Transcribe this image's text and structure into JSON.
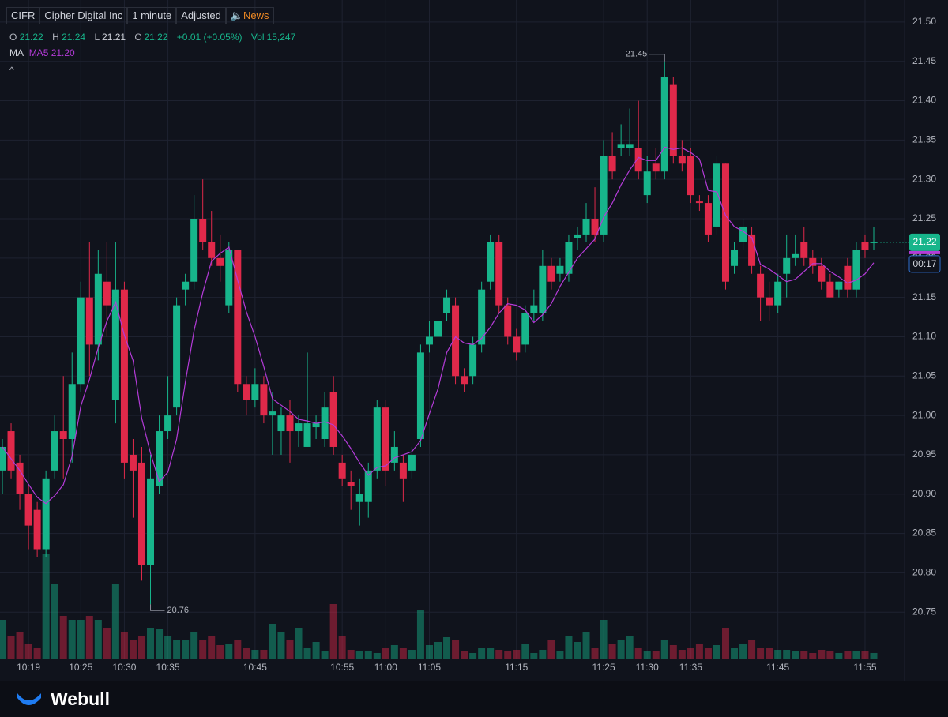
{
  "header": {
    "symbol": "CIFR",
    "name": "Cipher Digital Inc",
    "interval": "1 minute",
    "adjust": "Adjusted",
    "news": "News"
  },
  "legend": {
    "o_label": "O",
    "o": "21.22",
    "h_label": "H",
    "h": "21.24",
    "l_label": "L",
    "l": "21.21",
    "c_label": "C",
    "c": "21.22",
    "change": "+0.01 (+0.05%)",
    "vol_label": "Vol",
    "vol": "15,247",
    "ma_label": "MA",
    "ma": "MA5 21.20",
    "collapse": "^"
  },
  "countdown": "00:17",
  "brand": "Webull",
  "chart_data": {
    "type": "candlestick",
    "categories": [
      null,
      null,
      null,
      "10:19",
      null,
      null,
      null,
      null,
      null,
      "10:25",
      null,
      null,
      null,
      null,
      "10:30",
      null,
      null,
      null,
      null,
      "10:35",
      null,
      null,
      null,
      null,
      null,
      null,
      null,
      null,
      null,
      "10:45",
      null,
      null,
      null,
      null,
      null,
      null,
      null,
      null,
      null,
      "10:55",
      null,
      null,
      null,
      null,
      "11:00",
      null,
      null,
      null,
      null,
      "11:05",
      null,
      null,
      null,
      null,
      null,
      null,
      null,
      null,
      null,
      "11:15",
      null,
      null,
      null,
      null,
      null,
      null,
      null,
      null,
      null,
      "11:25",
      null,
      null,
      null,
      null,
      "11:30",
      null,
      null,
      null,
      null,
      "11:35",
      null,
      null,
      null,
      null,
      null,
      null,
      null,
      null,
      null,
      "11:45",
      null,
      null,
      null,
      null,
      null,
      null,
      null,
      null,
      null,
      "11:55",
      null
    ],
    "open": [
      20.93,
      20.98,
      20.94,
      20.9,
      20.88,
      20.83,
      20.93,
      20.98,
      20.97,
      21.04,
      21.15,
      21.09,
      21.17,
      21.02,
      21.16,
      20.95,
      20.94,
      20.81,
      20.91,
      20.98,
      21.01,
      21.16,
      21.17,
      21.25,
      21.22,
      21.2,
      21.14,
      21.21,
      21.04,
      21.02,
      21.04,
      21.0,
      20.98,
      21.0,
      20.98,
      20.96,
      20.985,
      20.97,
      21.03,
      20.94,
      20.915,
      20.89,
      20.89,
      20.93,
      21.01,
      20.94,
      20.94,
      20.93,
      20.97,
      21.09,
      21.1,
      21.13,
      21.14,
      21.05,
      21.05,
      21.09,
      21.17,
      21.22,
      21.14,
      21.1,
      21.09,
      21.13,
      21.13,
      21.19,
      21.18,
      21.18,
      21.225,
      21.23,
      21.25,
      21.23,
      21.33,
      21.34,
      21.34,
      21.34,
      21.28,
      21.32,
      21.31,
      21.42,
      21.33,
      21.33,
      21.272,
      21.27,
      21.24,
      21.32,
      21.19,
      21.22,
      21.23,
      21.18,
      21.15,
      21.14,
      21.18,
      21.2,
      21.22,
      21.2,
      21.19,
      21.17,
      21.16,
      21.19,
      21.16,
      21.22,
      21.22
    ],
    "high": [
      20.97,
      20.99,
      20.95,
      20.91,
      20.89,
      20.93,
      21.0,
      21.05,
      21.08,
      21.17,
      21.22,
      21.21,
      21.22,
      21.22,
      21.17,
      20.97,
      20.96,
      20.95,
      21.0,
      21.05,
      21.15,
      21.18,
      21.28,
      21.3,
      21.26,
      21.23,
      21.22,
      21.21,
      21.05,
      21.06,
      21.05,
      21.03,
      21.01,
      21.02,
      21.0,
      21.08,
      21.0,
      21.03,
      21.05,
      20.95,
      20.93,
      20.92,
      20.94,
      21.02,
      21.02,
      20.98,
      20.95,
      20.96,
      21.09,
      21.12,
      21.14,
      21.16,
      21.15,
      21.06,
      21.1,
      21.17,
      21.23,
      21.23,
      21.15,
      21.11,
      21.14,
      21.16,
      21.21,
      21.2,
      21.2,
      21.23,
      21.24,
      21.27,
      21.29,
      21.35,
      21.36,
      21.37,
      21.39,
      21.4,
      21.33,
      21.34,
      21.45,
      21.43,
      21.35,
      21.34,
      21.28,
      21.28,
      21.33,
      21.32,
      21.22,
      21.25,
      21.24,
      21.19,
      21.17,
      21.18,
      21.23,
      21.23,
      21.24,
      21.21,
      21.2,
      21.18,
      21.17,
      21.2,
      21.22,
      21.23,
      21.24
    ],
    "low": [
      20.9,
      20.92,
      20.88,
      20.83,
      20.82,
      20.82,
      20.92,
      20.92,
      20.94,
      21.03,
      21.05,
      21.07,
      21.1,
      20.99,
      20.92,
      20.87,
      20.79,
      20.76,
      20.9,
      20.97,
      21.0,
      21.14,
      21.16,
      21.21,
      21.19,
      21.17,
      21.13,
      21.03,
      21.0,
      21.01,
      20.99,
      20.95,
      20.95,
      20.94,
      20.96,
      20.96,
      20.97,
      20.96,
      20.95,
      20.91,
      20.88,
      20.86,
      20.87,
      20.92,
      20.91,
      20.93,
      20.89,
      20.92,
      20.96,
      21.08,
      21.09,
      21.12,
      21.04,
      21.03,
      21.04,
      21.08,
      21.16,
      21.13,
      21.09,
      21.07,
      21.08,
      21.12,
      21.12,
      21.16,
      21.17,
      21.17,
      21.21,
      21.22,
      21.22,
      21.22,
      21.3,
      21.33,
      21.33,
      21.3,
      21.27,
      21.3,
      21.3,
      21.32,
      21.31,
      21.27,
      21.26,
      21.22,
      21.23,
      21.16,
      21.18,
      21.21,
      21.18,
      21.12,
      21.12,
      21.13,
      21.15,
      21.19,
      21.19,
      21.18,
      21.16,
      21.15,
      21.15,
      21.15,
      21.15,
      21.2,
      21.21
    ],
    "close": [
      20.96,
      20.93,
      20.9,
      20.86,
      20.83,
      20.92,
      20.98,
      20.97,
      21.04,
      21.15,
      21.09,
      21.18,
      21.14,
      21.16,
      20.94,
      20.93,
      20.81,
      20.92,
      20.98,
      21.0,
      21.14,
      21.17,
      21.25,
      21.22,
      21.2,
      21.19,
      21.21,
      21.04,
      21.02,
      21.04,
      21.0,
      21.005,
      21.0,
      20.98,
      20.99,
      20.99,
      20.99,
      21.01,
      20.96,
      20.92,
      20.91,
      20.9,
      20.93,
      21.01,
      20.93,
      20.96,
      20.92,
      20.95,
      21.08,
      21.1,
      21.12,
      21.15,
      21.05,
      21.04,
      21.09,
      21.16,
      21.22,
      21.14,
      21.1,
      21.08,
      21.13,
      21.14,
      21.19,
      21.17,
      21.19,
      21.22,
      21.23,
      21.25,
      21.23,
      21.33,
      21.31,
      21.345,
      21.345,
      21.31,
      21.31,
      21.31,
      21.43,
      21.33,
      21.32,
      21.28,
      21.27,
      21.23,
      21.32,
      21.17,
      21.21,
      21.24,
      21.19,
      21.15,
      21.14,
      21.17,
      21.2,
      21.205,
      21.2,
      21.19,
      21.17,
      21.15,
      21.17,
      21.16,
      21.21,
      21.21,
      21.22
    ],
    "volume": [
      95000,
      57000,
      66500,
      38000,
      28500,
      252700,
      180500,
      104500,
      95000,
      95000,
      104500,
      95000,
      76000,
      180500,
      66500,
      47500,
      57000,
      76000,
      72200,
      57000,
      47500,
      47500,
      66500,
      47500,
      57000,
      34200,
      38000,
      47500,
      28500,
      22800,
      22800,
      85500,
      66500,
      47500,
      76000,
      28500,
      41800,
      19000,
      133000,
      57000,
      22800,
      19000,
      19000,
      15200,
      28500,
      34200,
      28500,
      22800,
      117800,
      34200,
      41800,
      53200,
      47500,
      19000,
      15200,
      28500,
      28500,
      22800,
      19000,
      22800,
      38000,
      15200,
      22800,
      47500,
      19000,
      57000,
      41800,
      66500,
      28500,
      95000,
      38000,
      47500,
      57000,
      28500,
      19000,
      19000,
      47500,
      34200,
      22800,
      28500,
      38000,
      28500,
      34200,
      76000,
      28500,
      38000,
      47500,
      28500,
      28500,
      22800,
      22800,
      19000,
      19000,
      15200,
      22800,
      19000,
      15200,
      19000,
      19000,
      19000,
      15247
    ],
    "ma_period": 5,
    "up_color": "#17b58b",
    "down_color": "#e0294a",
    "ma_color": "#b43bd8",
    "high_label": "21.45",
    "low_label": "20.76",
    "ylim": [
      20.69,
      21.528
    ],
    "yticks": [
      20.75,
      {
        "value": 20.8,
        "label": "20.80"
      },
      20.85,
      {
        "value": 20.9,
        "label": "20.90"
      },
      20.95,
      {
        "value": 21,
        "label": "21.00"
      },
      21.05,
      {
        "value": 21.1,
        "label": "21.10"
      },
      21.15,
      {
        "value": 21.2,
        "label": "21.20"
      },
      21.25,
      {
        "value": 21.3,
        "label": "21.30"
      },
      21.35,
      {
        "value": 21.4,
        "label": "21.40"
      },
      21.45,
      {
        "value": 21.5,
        "label": "21.50"
      }
    ],
    "grid": true
  }
}
